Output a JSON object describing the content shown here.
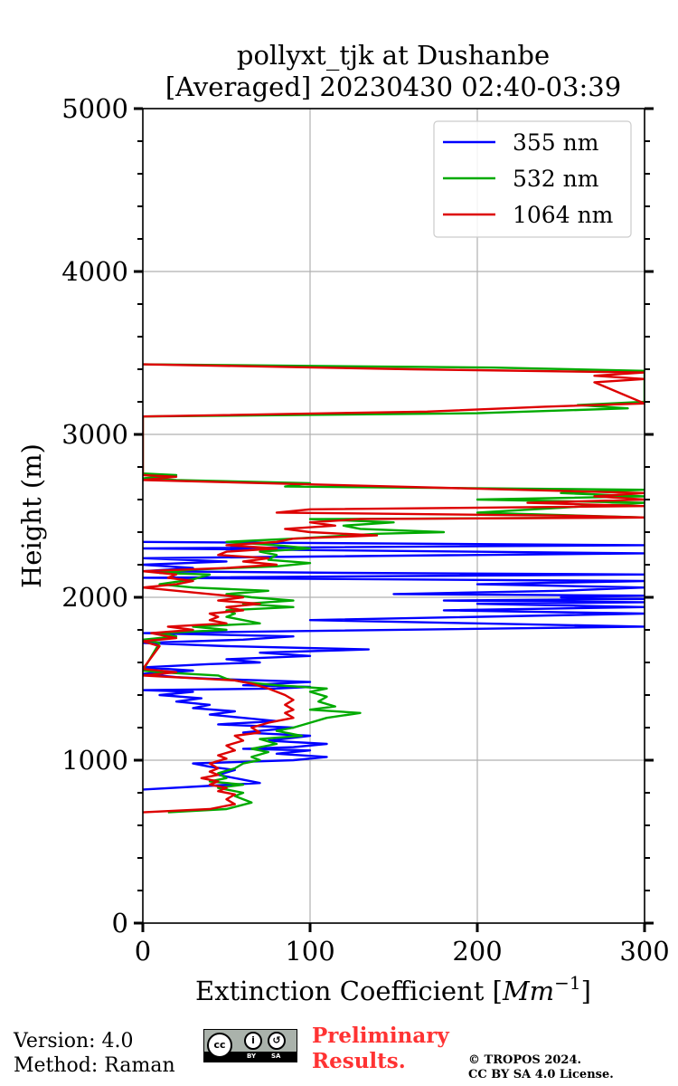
{
  "chart_data": {
    "type": "line",
    "title_line1": "pollyxt_tjk at Dushanbe",
    "title_line2": "[Averaged] 20230430 02:40-03:39",
    "xlabel_text": "Extinction Coefficient [",
    "xlabel_unit": "Mm",
    "xlabel_exp": "−1",
    "xlabel_close": "]",
    "ylabel": "Height (m)",
    "xlim": [
      0,
      300
    ],
    "ylim": [
      0,
      5000
    ],
    "xticks": [
      0,
      100,
      200,
      300
    ],
    "yticks": [
      0,
      1000,
      2000,
      3000,
      4000,
      5000
    ],
    "grid": true,
    "legend_position": "top-right",
    "series": [
      {
        "name": "355 nm",
        "color": "#0000ff",
        "points": [
          [
            0,
            820
          ],
          [
            70,
            860
          ],
          [
            60,
            880
          ],
          [
            45,
            910
          ],
          [
            55,
            940
          ],
          [
            40,
            960
          ],
          [
            30,
            980
          ],
          [
            60,
            990
          ],
          [
            90,
            1000
          ],
          [
            110,
            1020
          ],
          [
            80,
            1040
          ],
          [
            100,
            1060
          ],
          [
            60,
            1070
          ],
          [
            90,
            1080
          ],
          [
            110,
            1100
          ],
          [
            75,
            1120
          ],
          [
            100,
            1150
          ],
          [
            60,
            1170
          ],
          [
            90,
            1200
          ],
          [
            45,
            1220
          ],
          [
            80,
            1240
          ],
          [
            60,
            1260
          ],
          [
            40,
            1280
          ],
          [
            55,
            1300
          ],
          [
            30,
            1320
          ],
          [
            40,
            1340
          ],
          [
            20,
            1360
          ],
          [
            35,
            1380
          ],
          [
            10,
            1400
          ],
          [
            30,
            1420
          ],
          [
            0,
            1430
          ],
          [
            80,
            1440
          ],
          [
            100,
            1450
          ],
          [
            60,
            1460
          ],
          [
            100,
            1480
          ],
          [
            40,
            1500
          ],
          [
            20,
            1510
          ],
          [
            0,
            1530
          ],
          [
            30,
            1550
          ],
          [
            0,
            1570
          ],
          [
            40,
            1590
          ],
          [
            70,
            1600
          ],
          [
            50,
            1620
          ],
          [
            100,
            1640
          ],
          [
            70,
            1660
          ],
          [
            135,
            1680
          ],
          [
            50,
            1700
          ],
          [
            0,
            1720
          ],
          [
            60,
            1740
          ],
          [
            90,
            1760
          ],
          [
            0,
            1780
          ],
          [
            300,
            1820
          ],
          [
            200,
            1840
          ],
          [
            100,
            1860
          ],
          [
            300,
            1900
          ],
          [
            180,
            1920
          ],
          [
            300,
            1940
          ],
          [
            200,
            1960
          ],
          [
            300,
            1970
          ],
          [
            180,
            1980
          ],
          [
            300,
            1990
          ],
          [
            250,
            2000
          ],
          [
            300,
            2010
          ],
          [
            150,
            2020
          ],
          [
            250,
            2040
          ],
          [
            300,
            2060
          ],
          [
            200,
            2080
          ],
          [
            300,
            2100
          ],
          [
            0,
            2120
          ],
          [
            300,
            2140
          ],
          [
            120,
            2150
          ],
          [
            0,
            2160
          ],
          [
            30,
            2180
          ],
          [
            0,
            2200
          ],
          [
            50,
            2220
          ],
          [
            0,
            2240
          ],
          [
            300,
            2270
          ],
          [
            0,
            2300
          ],
          [
            300,
            2320
          ],
          [
            0,
            2340
          ]
        ]
      },
      {
        "name": "532 nm",
        "color": "#00aa00",
        "points": [
          [
            15,
            680
          ],
          [
            50,
            700
          ],
          [
            65,
            740
          ],
          [
            55,
            780
          ],
          [
            60,
            800
          ],
          [
            45,
            830
          ],
          [
            60,
            850
          ],
          [
            40,
            870
          ],
          [
            50,
            890
          ],
          [
            45,
            920
          ],
          [
            55,
            950
          ],
          [
            60,
            980
          ],
          [
            70,
            1000
          ],
          [
            65,
            1020
          ],
          [
            75,
            1050
          ],
          [
            65,
            1070
          ],
          [
            80,
            1100
          ],
          [
            70,
            1130
          ],
          [
            95,
            1150
          ],
          [
            80,
            1180
          ],
          [
            90,
            1200
          ],
          [
            100,
            1230
          ],
          [
            110,
            1260
          ],
          [
            130,
            1290
          ],
          [
            100,
            1310
          ],
          [
            115,
            1330
          ],
          [
            105,
            1360
          ],
          [
            110,
            1390
          ],
          [
            100,
            1420
          ],
          [
            110,
            1440
          ],
          [
            80,
            1460
          ],
          [
            60,
            1480
          ],
          [
            50,
            1500
          ],
          [
            45,
            1520
          ],
          [
            10,
            1540
          ],
          [
            0,
            1550
          ],
          [
            10,
            1720
          ],
          [
            0,
            1740
          ],
          [
            20,
            1760
          ],
          [
            10,
            1780
          ],
          [
            50,
            1800
          ],
          [
            30,
            1820
          ],
          [
            70,
            1840
          ],
          [
            60,
            1860
          ],
          [
            50,
            1880
          ],
          [
            55,
            1900
          ],
          [
            50,
            1920
          ],
          [
            90,
            1940
          ],
          [
            60,
            1960
          ],
          [
            90,
            1980
          ],
          [
            65,
            2000
          ],
          [
            50,
            2020
          ],
          [
            75,
            2040
          ],
          [
            30,
            2060
          ],
          [
            10,
            2080
          ],
          [
            30,
            2110
          ],
          [
            40,
            2140
          ],
          [
            10,
            2150
          ],
          [
            30,
            2170
          ],
          [
            80,
            2190
          ],
          [
            100,
            2210
          ],
          [
            75,
            2230
          ],
          [
            80,
            2260
          ],
          [
            70,
            2280
          ],
          [
            100,
            2300
          ],
          [
            80,
            2320
          ],
          [
            50,
            2340
          ],
          [
            90,
            2360
          ],
          [
            140,
            2390
          ],
          [
            180,
            2400
          ],
          [
            130,
            2420
          ],
          [
            120,
            2440
          ],
          [
            150,
            2460
          ],
          [
            100,
            2480
          ],
          [
            300,
            2490
          ],
          [
            200,
            2520
          ],
          [
            250,
            2550
          ],
          [
            300,
            2580
          ],
          [
            200,
            2600
          ],
          [
            300,
            2620
          ],
          [
            250,
            2640
          ],
          [
            300,
            2660
          ],
          [
            85,
            2680
          ],
          [
            100,
            2700
          ],
          [
            20,
            2720
          ],
          [
            0,
            2730
          ],
          [
            20,
            2750
          ],
          [
            0,
            2760
          ],
          [
            0,
            3110
          ],
          [
            200,
            3130
          ],
          [
            290,
            3160
          ],
          [
            260,
            3180
          ],
          [
            300,
            3200
          ],
          [
            300,
            3320
          ],
          [
            300,
            3360
          ],
          [
            300,
            3390
          ],
          [
            210,
            3410
          ],
          [
            0,
            3430
          ]
        ]
      },
      {
        "name": "1064 nm",
        "color": "#dd0000",
        "points": [
          [
            0,
            680
          ],
          [
            40,
            700
          ],
          [
            55,
            730
          ],
          [
            50,
            760
          ],
          [
            55,
            790
          ],
          [
            45,
            810
          ],
          [
            50,
            830
          ],
          [
            40,
            850
          ],
          [
            45,
            870
          ],
          [
            35,
            890
          ],
          [
            45,
            910
          ],
          [
            40,
            930
          ],
          [
            45,
            950
          ],
          [
            40,
            980
          ],
          [
            50,
            1010
          ],
          [
            45,
            1030
          ],
          [
            55,
            1060
          ],
          [
            50,
            1090
          ],
          [
            60,
            1120
          ],
          [
            55,
            1150
          ],
          [
            70,
            1170
          ],
          [
            65,
            1200
          ],
          [
            75,
            1230
          ],
          [
            90,
            1260
          ],
          [
            85,
            1290
          ],
          [
            90,
            1310
          ],
          [
            85,
            1340
          ],
          [
            90,
            1370
          ],
          [
            85,
            1400
          ],
          [
            75,
            1440
          ],
          [
            65,
            1470
          ],
          [
            55,
            1490
          ],
          [
            0,
            1520
          ],
          [
            20,
            1540
          ],
          [
            0,
            1560
          ],
          [
            10,
            1700
          ],
          [
            0,
            1730
          ],
          [
            20,
            1750
          ],
          [
            5,
            1780
          ],
          [
            30,
            1800
          ],
          [
            15,
            1820
          ],
          [
            50,
            1840
          ],
          [
            40,
            1860
          ],
          [
            45,
            1880
          ],
          [
            40,
            1900
          ],
          [
            60,
            1920
          ],
          [
            50,
            1940
          ],
          [
            70,
            1960
          ],
          [
            45,
            1980
          ],
          [
            60,
            2000
          ],
          [
            40,
            2020
          ],
          [
            0,
            2060
          ],
          [
            20,
            2080
          ],
          [
            30,
            2100
          ],
          [
            15,
            2120
          ],
          [
            20,
            2140
          ],
          [
            0,
            2160
          ],
          [
            50,
            2180
          ],
          [
            80,
            2200
          ],
          [
            60,
            2220
          ],
          [
            75,
            2240
          ],
          [
            45,
            2260
          ],
          [
            50,
            2280
          ],
          [
            80,
            2300
          ],
          [
            50,
            2320
          ],
          [
            80,
            2340
          ],
          [
            90,
            2360
          ],
          [
            140,
            2380
          ],
          [
            100,
            2400
          ],
          [
            85,
            2420
          ],
          [
            115,
            2440
          ],
          [
            100,
            2460
          ],
          [
            130,
            2480
          ],
          [
            300,
            2490
          ],
          [
            260,
            2500
          ],
          [
            80,
            2520
          ],
          [
            100,
            2540
          ],
          [
            300,
            2560
          ],
          [
            230,
            2580
          ],
          [
            300,
            2600
          ],
          [
            270,
            2620
          ],
          [
            300,
            2640
          ],
          [
            0,
            2720
          ],
          [
            20,
            2740
          ],
          [
            0,
            2750
          ],
          [
            0,
            3110
          ],
          [
            170,
            3140
          ],
          [
            240,
            3170
          ],
          [
            300,
            3190
          ],
          [
            270,
            3320
          ],
          [
            300,
            3340
          ],
          [
            270,
            3360
          ],
          [
            300,
            3380
          ],
          [
            160,
            3400
          ],
          [
            0,
            3430
          ]
        ]
      }
    ]
  },
  "footer": {
    "version": "Version: 4.0",
    "method": "Method: Raman",
    "preliminary_line1": "Preliminary",
    "preliminary_line2": "Results.",
    "copyright_line1": "© TROPOS 2024.",
    "copyright_line2": "CC BY SA 4.0 License.",
    "license_badge_cc": "cc",
    "license_badge_by": "BY",
    "license_badge_sa": "SA"
  }
}
